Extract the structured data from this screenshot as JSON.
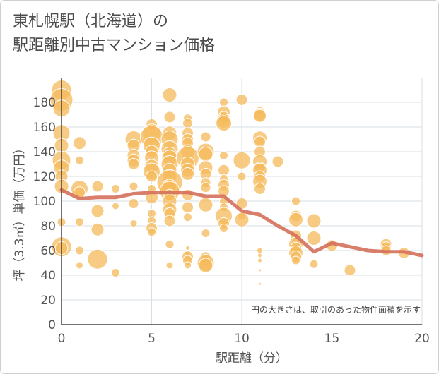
{
  "chart_data": {
    "type": "scatter",
    "title_line1": "東札幌駅（北海道）の",
    "title_line2": "駅距離別中古マンション価格",
    "xlabel": "駅距離（分）",
    "ylabel": "坪（3.3㎡）単価（万円）",
    "note": "円の大きさは、取引のあった物件面積を示す",
    "xlim": [
      0,
      20
    ],
    "ylim": [
      0,
      200
    ],
    "xticks": [
      "0",
      "5",
      "10",
      "15",
      "20"
    ],
    "yticks": [
      "0",
      "20",
      "40",
      "60",
      "80",
      "100",
      "120",
      "140",
      "160",
      "180"
    ],
    "grid": true,
    "colors": {
      "bubble": "#f5b95b",
      "bubble_edge": "#ffffff",
      "line": "#d4705b",
      "grid": "#d9dfe6",
      "axis": "#444444"
    },
    "bubbles": [
      [
        0,
        190,
        14
      ],
      [
        0,
        182,
        16
      ],
      [
        0,
        175,
        12
      ],
      [
        0,
        155,
        12
      ],
      [
        0,
        145,
        10
      ],
      [
        0,
        133,
        13
      ],
      [
        0,
        127,
        11
      ],
      [
        0,
        120,
        9
      ],
      [
        0,
        112,
        10
      ],
      [
        0,
        83,
        6
      ],
      [
        0,
        63,
        14
      ],
      [
        0,
        62,
        9
      ],
      [
        1,
        147,
        9
      ],
      [
        1,
        133,
        6
      ],
      [
        1,
        110,
        12
      ],
      [
        1,
        107,
        8
      ],
      [
        1,
        83,
        6
      ],
      [
        1,
        60,
        6
      ],
      [
        1,
        48,
        5
      ],
      [
        2,
        112,
        8
      ],
      [
        2,
        92,
        9
      ],
      [
        2,
        77,
        9
      ],
      [
        2,
        53,
        14
      ],
      [
        3,
        110,
        6
      ],
      [
        3,
        96,
        5
      ],
      [
        3,
        42,
        6
      ],
      [
        4,
        150,
        12
      ],
      [
        4,
        145,
        9
      ],
      [
        4,
        137,
        9
      ],
      [
        4,
        133,
        9
      ],
      [
        4,
        130,
        8
      ],
      [
        4,
        112,
        6
      ],
      [
        4,
        98,
        7
      ],
      [
        4,
        82,
        5
      ],
      [
        5,
        162,
        8
      ],
      [
        5,
        155,
        13
      ],
      [
        5,
        152,
        16
      ],
      [
        5,
        145,
        12
      ],
      [
        5,
        140,
        9
      ],
      [
        5,
        135,
        10
      ],
      [
        5,
        128,
        10
      ],
      [
        5,
        124,
        12
      ],
      [
        5,
        120,
        8
      ],
      [
        5,
        110,
        6
      ],
      [
        5,
        103,
        9
      ],
      [
        5,
        90,
        6
      ],
      [
        5,
        84,
        6
      ],
      [
        5,
        78,
        8
      ],
      [
        5,
        75,
        6
      ],
      [
        6,
        186,
        10
      ],
      [
        6,
        168,
        8
      ],
      [
        6,
        155,
        10
      ],
      [
        6,
        150,
        12
      ],
      [
        6,
        142,
        12
      ],
      [
        6,
        138,
        10
      ],
      [
        6,
        135,
        11
      ],
      [
        6,
        130,
        12
      ],
      [
        6,
        125,
        10
      ],
      [
        6,
        120,
        10
      ],
      [
        6,
        115,
        18
      ],
      [
        6,
        112,
        10
      ],
      [
        6,
        108,
        14
      ],
      [
        6,
        105,
        8
      ],
      [
        6,
        100,
        10
      ],
      [
        6,
        93,
        10
      ],
      [
        6,
        90,
        8
      ],
      [
        6,
        84,
        8
      ],
      [
        6,
        65,
        6
      ],
      [
        6,
        48,
        5
      ],
      [
        7,
        167,
        6
      ],
      [
        7,
        163,
        7
      ],
      [
        7,
        155,
        8
      ],
      [
        7,
        150,
        8
      ],
      [
        7,
        147,
        8
      ],
      [
        7,
        140,
        10
      ],
      [
        7,
        135,
        16
      ],
      [
        7,
        130,
        10
      ],
      [
        7,
        125,
        10
      ],
      [
        7,
        122,
        9
      ],
      [
        7,
        105,
        8
      ],
      [
        7,
        95,
        8
      ],
      [
        7,
        87,
        6
      ],
      [
        7,
        62,
        3
      ],
      [
        7,
        58,
        4
      ],
      [
        7,
        55,
        8
      ],
      [
        7,
        52,
        7
      ],
      [
        7,
        48,
        5
      ],
      [
        8,
        152,
        7
      ],
      [
        8,
        140,
        12
      ],
      [
        8,
        138,
        10
      ],
      [
        8,
        127,
        10
      ],
      [
        8,
        122,
        8
      ],
      [
        8,
        115,
        7
      ],
      [
        8,
        111,
        7
      ],
      [
        8,
        97,
        10
      ],
      [
        8,
        74,
        6
      ],
      [
        8,
        55,
        7
      ],
      [
        8,
        52,
        8
      ],
      [
        8,
        50,
        12
      ],
      [
        8,
        48,
        10
      ],
      [
        9,
        180,
        6
      ],
      [
        9,
        172,
        9
      ],
      [
        9,
        168,
        8
      ],
      [
        9,
        165,
        10
      ],
      [
        9,
        163,
        11
      ],
      [
        9,
        137,
        6
      ],
      [
        9,
        125,
        8
      ],
      [
        9,
        118,
        6
      ],
      [
        9,
        113,
        8
      ],
      [
        9,
        108,
        8
      ],
      [
        9,
        100,
        6
      ],
      [
        9,
        95,
        6
      ],
      [
        9,
        88,
        12
      ],
      [
        9,
        82,
        8
      ],
      [
        9,
        78,
        6
      ],
      [
        10,
        182,
        8
      ],
      [
        10,
        133,
        12
      ],
      [
        10,
        120,
        6
      ],
      [
        10,
        98,
        8
      ],
      [
        10,
        88,
        6
      ],
      [
        10,
        85,
        10
      ],
      [
        11,
        173,
        6
      ],
      [
        11,
        170,
        9
      ],
      [
        11,
        169,
        9
      ],
      [
        11,
        151,
        10
      ],
      [
        11,
        148,
        8
      ],
      [
        11,
        140,
        8
      ],
      [
        11,
        132,
        10
      ],
      [
        11,
        127,
        8
      ],
      [
        11,
        125,
        10
      ],
      [
        11,
        120,
        8
      ],
      [
        11,
        116,
        10
      ],
      [
        11,
        110,
        8
      ],
      [
        11,
        60,
        4
      ],
      [
        11,
        56,
        3
      ],
      [
        11,
        52,
        3
      ],
      [
        11,
        44,
        2
      ],
      [
        11,
        33,
        2
      ],
      [
        12,
        132,
        8
      ],
      [
        13,
        100,
        6
      ],
      [
        13,
        88,
        8
      ],
      [
        13,
        85,
        10
      ],
      [
        13,
        72,
        8
      ],
      [
        13,
        65,
        10
      ],
      [
        13,
        62,
        8
      ],
      [
        13,
        58,
        10
      ],
      [
        13,
        55,
        8
      ],
      [
        13,
        52,
        6
      ],
      [
        14,
        84,
        10
      ],
      [
        14,
        70,
        10
      ],
      [
        14,
        49,
        6
      ],
      [
        15,
        64,
        8
      ],
      [
        16,
        44,
        8
      ],
      [
        18,
        65,
        8
      ],
      [
        18,
        63,
        7
      ],
      [
        18,
        60,
        7
      ],
      [
        19,
        58,
        8
      ]
    ],
    "trend": {
      "x": [
        0,
        1,
        2,
        3,
        4,
        5,
        6,
        7,
        8,
        9,
        10,
        11,
        12,
        13,
        14,
        15,
        16,
        17,
        18,
        19,
        20
      ],
      "y": [
        109,
        102,
        103,
        103,
        106,
        107,
        107,
        107,
        104,
        104,
        92,
        89,
        80,
        72,
        59,
        66,
        63,
        60,
        59,
        59,
        56
      ]
    }
  }
}
